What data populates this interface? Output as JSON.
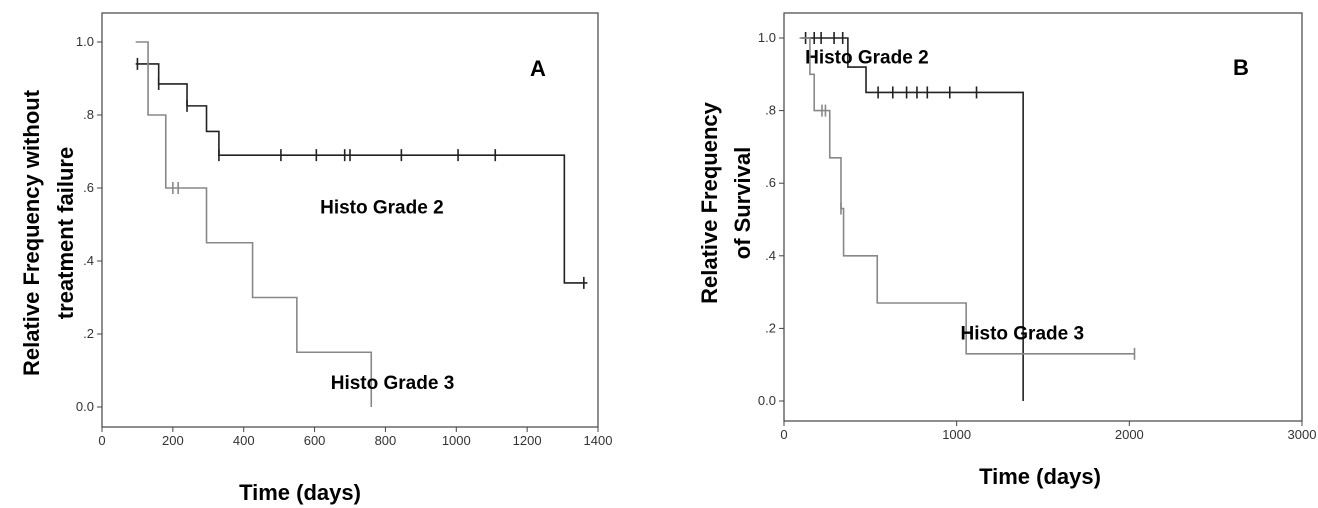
{
  "chart_data": [
    {
      "panel": "A",
      "type": "line",
      "step": true,
      "ylabel_lines": [
        "Relative Frequency without",
        "treatment failure"
      ],
      "xlabel": "Time (days)",
      "xlim": [
        0,
        1400
      ],
      "ylim": [
        0,
        1.0
      ],
      "x_ticks": [
        0,
        200,
        400,
        600,
        800,
        1000,
        1200,
        1400
      ],
      "x_tick_labels": [
        "0",
        "200",
        "400",
        "600",
        "800",
        "1000",
        "1200",
        "1400"
      ],
      "y_ticks": [
        0.0,
        0.2,
        0.4,
        0.6,
        0.8,
        1.0
      ],
      "y_tick_labels": [
        "0.0",
        ".2",
        ".4",
        ".6",
        ".8",
        "1.0"
      ],
      "grid": false,
      "series": [
        {
          "name": "Histo Grade 2",
          "color": "#222222",
          "start_x": 95,
          "points": [
            [
              95,
              0.94
            ],
            [
              160,
              0.885
            ],
            [
              240,
              0.825
            ],
            [
              295,
              0.755
            ],
            [
              330,
              0.69
            ],
            [
              1305,
              0.34
            ],
            [
              1370,
              0.34
            ]
          ],
          "censored": [
            [
              100,
              0.94
            ],
            [
              160,
              0.885
            ],
            [
              240,
              0.825
            ],
            [
              330,
              0.69
            ],
            [
              505,
              0.69
            ],
            [
              605,
              0.69
            ],
            [
              685,
              0.69
            ],
            [
              700,
              0.69
            ],
            [
              845,
              0.69
            ],
            [
              1005,
              0.69
            ],
            [
              1110,
              0.69
            ],
            [
              1360,
              0.34
            ]
          ],
          "label": {
            "text": "Histo Grade 2",
            "x": 790,
            "y": 0.53
          }
        },
        {
          "name": "Histo Grade 3",
          "color": "#888888",
          "start_x": 95,
          "points": [
            [
              95,
              1.0
            ],
            [
              130,
              0.8
            ],
            [
              180,
              0.6
            ],
            [
              295,
              0.45
            ],
            [
              425,
              0.3
            ],
            [
              550,
              0.15
            ],
            [
              760,
              0.0
            ]
          ],
          "censored": [
            [
              200,
              0.6
            ],
            [
              215,
              0.6
            ]
          ],
          "label": {
            "text": "Histo Grade 3",
            "x": 820,
            "y": 0.05
          }
        }
      ]
    },
    {
      "panel": "B",
      "type": "line",
      "step": true,
      "ylabel_lines": [
        "Relative Frequency",
        "of Survival"
      ],
      "xlabel": "Time (days)",
      "xlim": [
        0,
        3000
      ],
      "ylim": [
        0,
        1.0
      ],
      "x_ticks": [
        0,
        1000,
        2000,
        3000
      ],
      "x_tick_labels": [
        "0",
        "1000",
        "2000",
        "3000"
      ],
      "y_ticks": [
        0.0,
        0.2,
        0.4,
        0.6,
        0.8,
        1.0
      ],
      "y_tick_labels": [
        "0.0",
        ".2",
        ".4",
        ".6",
        ".8",
        "1.0"
      ],
      "grid": false,
      "series": [
        {
          "name": "Histo Grade 2",
          "color": "#222222",
          "start_x": 100,
          "points": [
            [
              100,
              1.0
            ],
            [
              370,
              0.92
            ],
            [
              475,
              0.85
            ],
            [
              1385,
              0.0
            ]
          ],
          "censored": [
            [
              125,
              1.0
            ],
            [
              175,
              1.0
            ],
            [
              215,
              1.0
            ],
            [
              290,
              1.0
            ],
            [
              340,
              1.0
            ],
            [
              545,
              0.85
            ],
            [
              630,
              0.85
            ],
            [
              710,
              0.85
            ],
            [
              770,
              0.85
            ],
            [
              830,
              0.85
            ],
            [
              960,
              0.85
            ],
            [
              1115,
              0.85
            ]
          ],
          "label": {
            "text": "Histo Grade 2",
            "x": 480,
            "y": 0.93
          }
        },
        {
          "name": "Histo Grade 3",
          "color": "#888888",
          "start_x": 90,
          "points": [
            [
              90,
              1.0
            ],
            [
              150,
              0.9
            ],
            [
              175,
              0.8
            ],
            [
              265,
              0.67
            ],
            [
              330,
              0.53
            ],
            [
              345,
              0.4
            ],
            [
              540,
              0.27
            ],
            [
              1055,
              0.13
            ],
            [
              2030,
              0.13
            ]
          ],
          "censored": [
            [
              220,
              0.8
            ],
            [
              240,
              0.8
            ],
            [
              330,
              0.53
            ],
            [
              2030,
              0.13
            ]
          ],
          "label": {
            "text": "Histo Grade 3",
            "x": 1380,
            "y": 0.17
          }
        }
      ]
    }
  ]
}
